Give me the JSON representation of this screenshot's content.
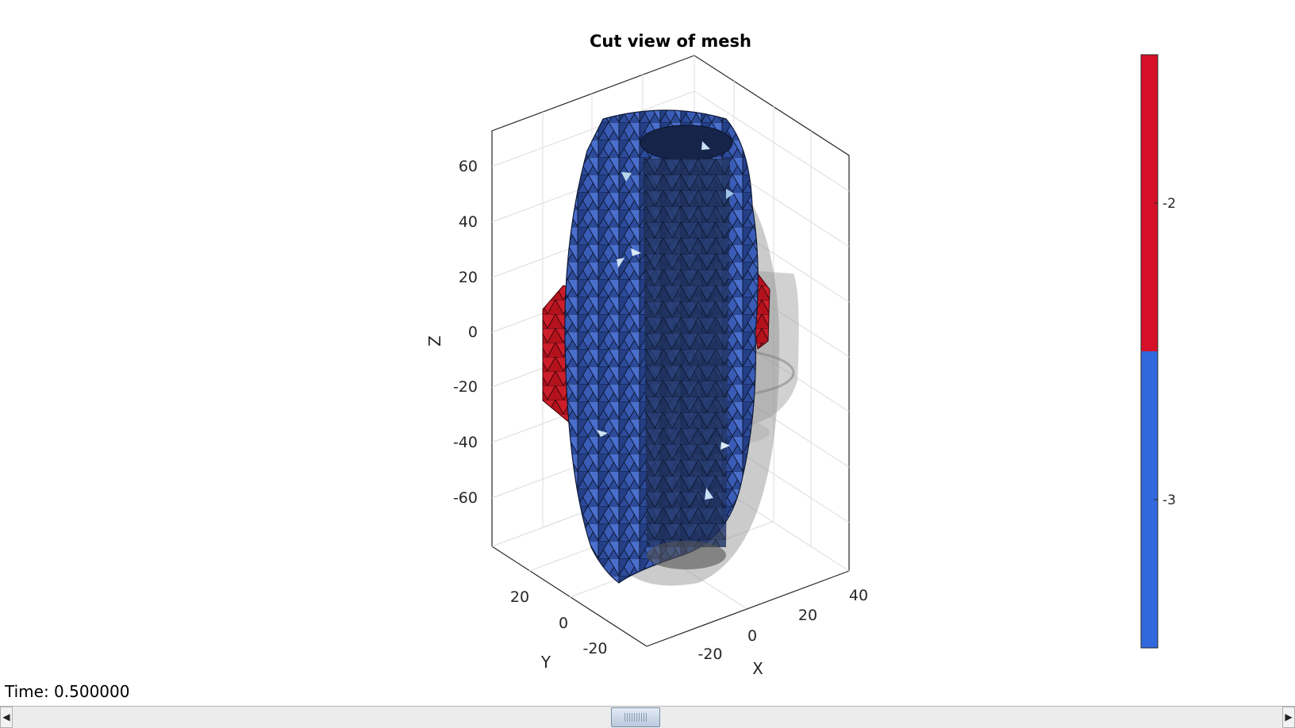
{
  "figure": {
    "time_label": "Time: 0.500000",
    "slider": {
      "value_fraction": 0.49
    }
  },
  "chart_data": {
    "type": "3d-mesh",
    "title": "Cut view of mesh",
    "xlabel": "X",
    "ylabel": "Y",
    "zlabel": "Z",
    "x_ticks": [
      "-20",
      "0",
      "20",
      "40"
    ],
    "y_ticks": [
      "20",
      "0",
      "-20"
    ],
    "z_ticks": [
      "60",
      "40",
      "20",
      "0",
      "-20",
      "-40",
      "-60"
    ],
    "xlim": [
      -40,
      40
    ],
    "ylim": [
      -40,
      40
    ],
    "zlim": [
      -75,
      75
    ],
    "grid": true,
    "colormap": [
      {
        "value": -2,
        "color": "#d7102a"
      },
      {
        "value": -3,
        "color": "#3169dd"
      }
    ],
    "colorbar": {
      "ticks": [
        "-2",
        "-3"
      ],
      "placement": "right"
    }
  }
}
